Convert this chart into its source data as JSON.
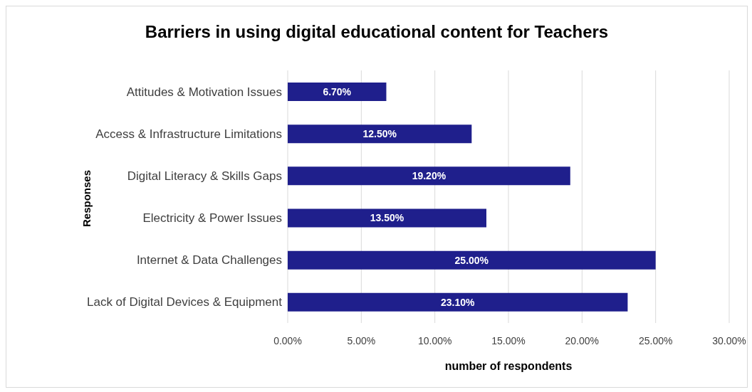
{
  "chart_data": {
    "type": "bar",
    "orientation": "horizontal",
    "title": "Barriers in using digital educational content for Teachers",
    "xlabel": "number of respondents",
    "ylabel": "Responses",
    "categories": [
      "Attitudes & Motivation Issues",
      "Access & Infrastructure Limitations",
      "Digital Literacy & Skills Gaps",
      "Electricity & Power Issues",
      "Internet & Data Challenges",
      "Lack of Digital Devices & Equipment"
    ],
    "values": [
      6.7,
      12.5,
      19.2,
      13.5,
      25.0,
      23.1
    ],
    "value_labels": [
      "6.70%",
      "12.50%",
      "19.20%",
      "13.50%",
      "25.00%",
      "23.10%"
    ],
    "color": "#1f1f8c",
    "xlim": [
      0,
      30
    ],
    "xticks": [
      {
        "value": 0,
        "label": "0.00%"
      },
      {
        "value": 5,
        "label": "5.00%"
      },
      {
        "value": 10,
        "label": "10.00%"
      },
      {
        "value": 15,
        "label": "15.00%"
      },
      {
        "value": 20,
        "label": "20.00%"
      },
      {
        "value": 25,
        "label": "25.00%"
      },
      {
        "value": 30,
        "label": "30.00%"
      }
    ],
    "grid": "x"
  }
}
